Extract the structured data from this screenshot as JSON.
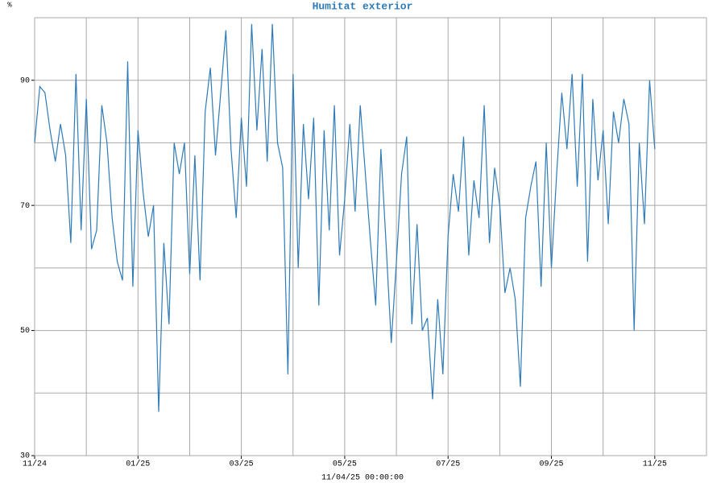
{
  "chart_data": {
    "type": "line",
    "title": "Humitat exterior",
    "y_unit": "%",
    "x_label": "11/04/25 00:00:00",
    "color": "#2f7bb8",
    "grid": true,
    "xlim": [
      0,
      13
    ],
    "xticks": [
      {
        "value": 0,
        "label": "11/24"
      },
      {
        "value": 2,
        "label": "01/25"
      },
      {
        "value": 4,
        "label": "03/25"
      },
      {
        "value": 6,
        "label": "05/25"
      },
      {
        "value": 8,
        "label": "07/25"
      },
      {
        "value": 10,
        "label": "09/25"
      },
      {
        "value": 12,
        "label": "11/25"
      }
    ],
    "xminor": [
      1,
      3,
      5,
      7,
      9,
      11
    ],
    "ylim": [
      30,
      100
    ],
    "yticks": [
      30,
      50,
      70,
      90
    ],
    "yminor": [
      40,
      60,
      80
    ],
    "x": [
      0,
      0.1,
      0.2,
      0.3,
      0.4,
      0.5,
      0.6,
      0.7,
      0.8,
      0.9,
      1,
      1.1,
      1.2,
      1.3,
      1.4,
      1.5,
      1.6,
      1.7,
      1.8,
      1.9,
      2,
      2.1,
      2.2,
      2.3,
      2.4,
      2.5,
      2.6,
      2.7,
      2.8,
      2.9,
      3,
      3.1,
      3.2,
      3.3,
      3.4,
      3.5,
      3.6,
      3.7,
      3.8,
      3.9,
      4,
      4.1,
      4.2,
      4.3,
      4.4,
      4.5,
      4.6,
      4.7,
      4.8,
      4.9,
      5,
      5.1,
      5.2,
      5.3,
      5.4,
      5.5,
      5.6,
      5.7,
      5.8,
      5.9,
      6,
      6.1,
      6.2,
      6.3,
      6.4,
      6.5,
      6.6,
      6.7,
      6.8,
      6.9,
      7,
      7.1,
      7.2,
      7.3,
      7.4,
      7.5,
      7.6,
      7.7,
      7.8,
      7.9,
      8,
      8.1,
      8.2,
      8.3,
      8.4,
      8.5,
      8.6,
      8.7,
      8.8,
      8.9,
      9,
      9.1,
      9.2,
      9.3,
      9.4,
      9.5,
      9.6,
      9.7,
      9.8,
      9.9,
      10,
      10.1,
      10.2,
      10.3,
      10.4,
      10.5,
      10.6,
      10.7,
      10.8,
      10.9,
      11,
      11.1,
      11.2,
      11.3,
      11.4,
      11.5,
      11.6,
      11.7,
      11.8,
      11.9,
      12
    ],
    "values": [
      80,
      89,
      88,
      82,
      77,
      83,
      78,
      64,
      91,
      66,
      87,
      63,
      66,
      86,
      80,
      68,
      61,
      58,
      93,
      57,
      82,
      72,
      65,
      70,
      37,
      64,
      51,
      80,
      75,
      80,
      59,
      78,
      58,
      85,
      92,
      78,
      88,
      98,
      79,
      68,
      84,
      73,
      99,
      82,
      95,
      77,
      99,
      80,
      76,
      43,
      91,
      60,
      83,
      71,
      84,
      54,
      82,
      66,
      86,
      62,
      71,
      83,
      69,
      86,
      75,
      64,
      54,
      79,
      64,
      48,
      61,
      75,
      81,
      51,
      67,
      50,
      52,
      39,
      55,
      43,
      65,
      75,
      69,
      81,
      62,
      74,
      68,
      86,
      64,
      76,
      70,
      56,
      60,
      55,
      41,
      68,
      73,
      77,
      57,
      80,
      60,
      75,
      88,
      79,
      91,
      73,
      91,
      61,
      87,
      74,
      82,
      67,
      85,
      80,
      87,
      83,
      50,
      80,
      67,
      90,
      79
    ]
  }
}
